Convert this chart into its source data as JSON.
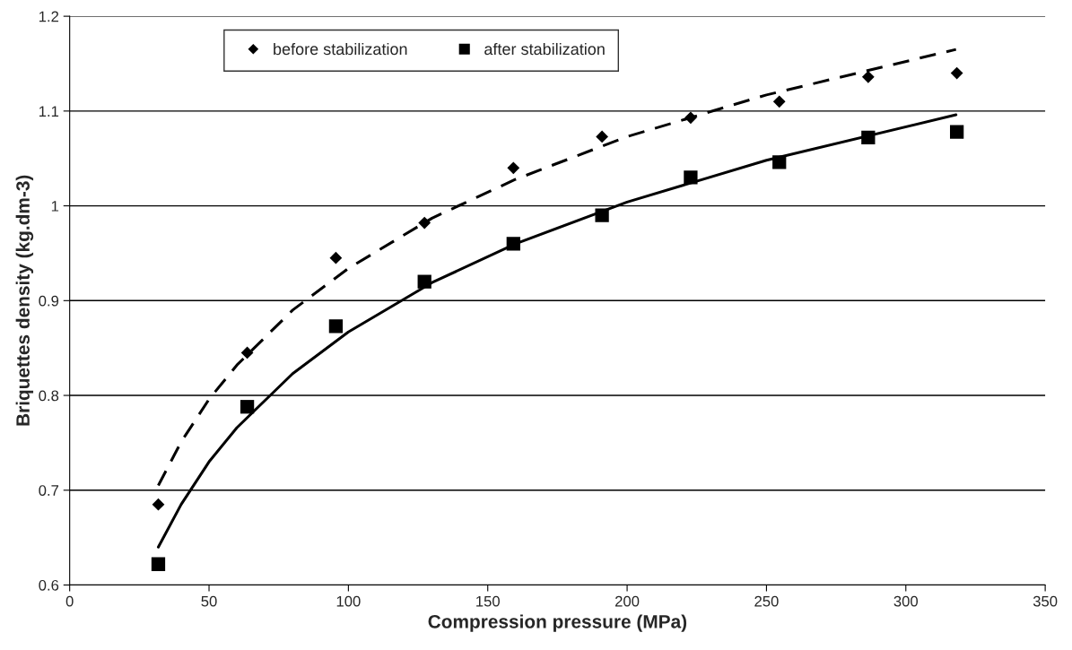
{
  "chart_data": {
    "type": "scatter",
    "xlabel": "Compression pressure (MPa)",
    "ylabel": "Briquettes density (kg.dm-3)",
    "xlim": [
      0,
      350
    ],
    "xticks": [
      0,
      50,
      100,
      150,
      200,
      250,
      300,
      350
    ],
    "ylim": [
      0.6,
      1.2
    ],
    "yticks": [
      0.6,
      0.7,
      0.8,
      0.9,
      1,
      1.1,
      1.2
    ],
    "grid": "y",
    "legend": "top",
    "series": [
      {
        "name": "before stabilization",
        "marker": "diamond",
        "color": "#000000",
        "x": [
          31.8,
          63.7,
          95.5,
          127.3,
          159.2,
          191,
          222.8,
          254.6,
          286.5,
          318.3
        ],
        "values": [
          0.685,
          0.845,
          0.945,
          0.982,
          1.04,
          1.073,
          1.093,
          1.11,
          1.136,
          1.14
        ]
      },
      {
        "name": "after stabilization",
        "marker": "square",
        "color": "#000000",
        "x": [
          31.8,
          63.7,
          95.5,
          127.3,
          159.2,
          191,
          222.8,
          254.6,
          286.5,
          318.3
        ],
        "values": [
          0.622,
          0.788,
          0.873,
          0.92,
          0.96,
          0.99,
          1.03,
          1.046,
          1.072,
          1.078
        ]
      },
      {
        "type": "line",
        "line_style": "dashed",
        "color": "#000000",
        "x": [
          31.8,
          40,
          50,
          60,
          80,
          100,
          130,
          160,
          200,
          250,
          318
        ],
        "values": [
          0.705,
          0.751,
          0.796,
          0.832,
          0.89,
          0.934,
          0.987,
          1.028,
          1.073,
          1.117,
          1.165
        ]
      },
      {
        "type": "line",
        "line_style": "solid",
        "color": "#000000",
        "x": [
          31.8,
          40,
          50,
          60,
          80,
          100,
          130,
          160,
          200,
          250,
          318
        ],
        "values": [
          0.64,
          0.685,
          0.73,
          0.766,
          0.823,
          0.867,
          0.919,
          0.96,
          1.004,
          1.048,
          1.096
        ]
      }
    ]
  }
}
